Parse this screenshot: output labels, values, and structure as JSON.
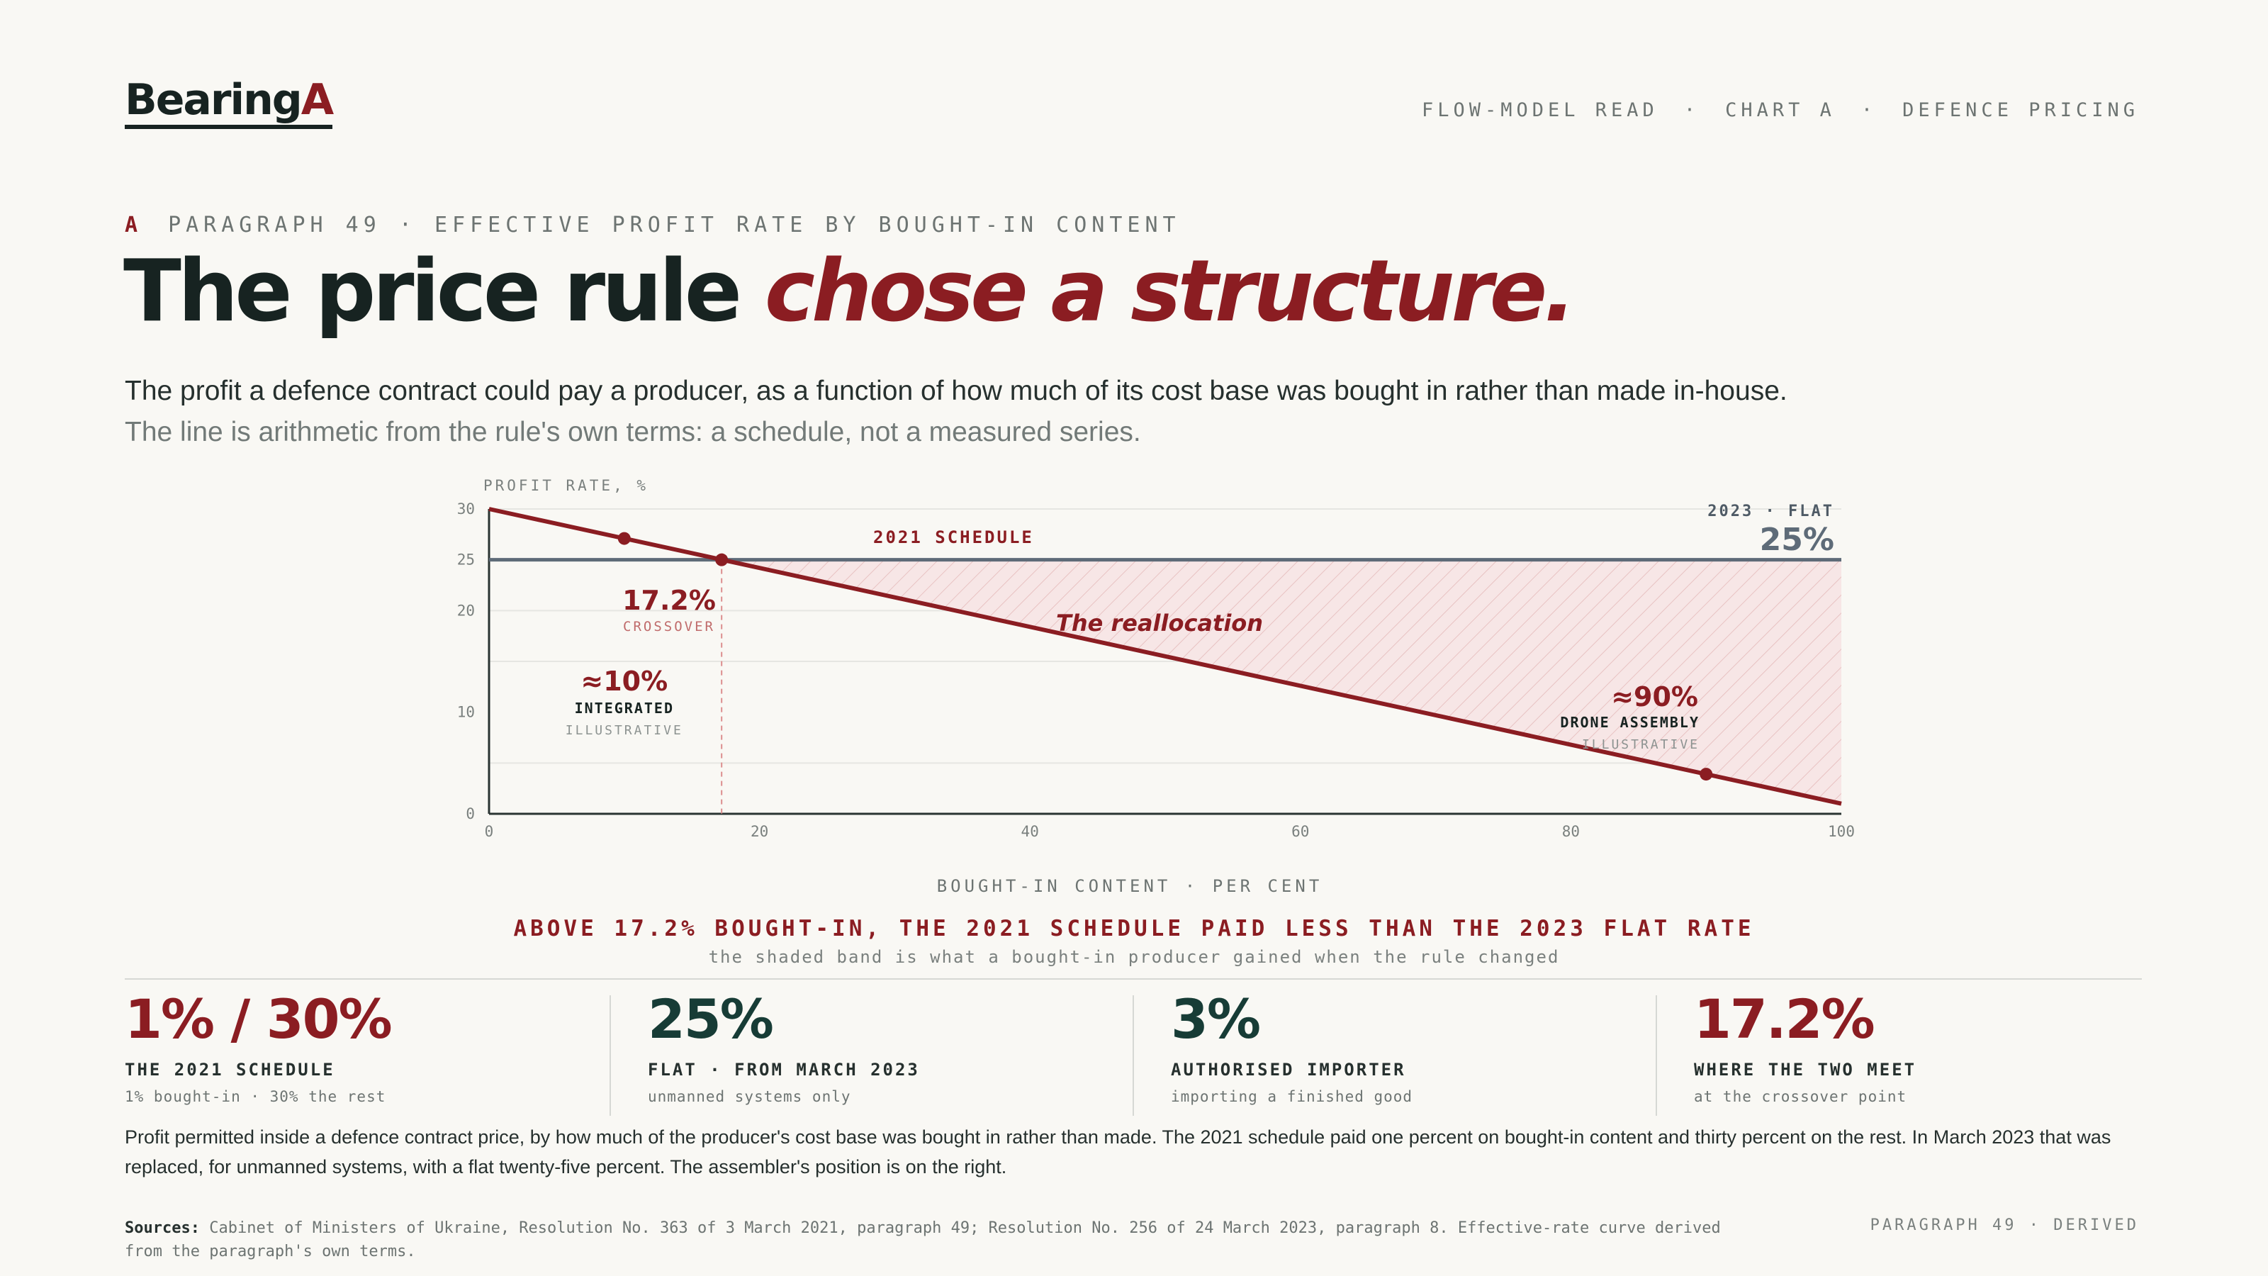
{
  "brand": {
    "logo_main": "Bearing",
    "logo_accent": "A"
  },
  "nav": {
    "item1": "FLOW-MODEL READ",
    "item2": "CHART A",
    "item3": "DEFENCE PRICING",
    "sep": "·"
  },
  "eyebrow": {
    "letter": "A",
    "text": "PARAGRAPH 49 · EFFECTIVE PROFIT RATE BY BOUGHT-IN CONTENT"
  },
  "headline": {
    "plain": "The price rule ",
    "emphasis": "chose a structure."
  },
  "lede": {
    "line1": "The profit a defence contract could pay a producer, as a function of how much of its cost base was bought in rather than made in-house.",
    "line2": "The line is arithmetic from the rule's own terms: a schedule, not a measured series."
  },
  "chart_data": {
    "type": "line",
    "ylabel": "PROFIT RATE, %",
    "xlabel": "BOUGHT-IN CONTENT · PER CENT",
    "xlim": [
      0,
      100
    ],
    "ylim": [
      0,
      30
    ],
    "x_ticks": [
      0,
      20,
      40,
      60,
      80,
      100
    ],
    "y_ticks": [
      0,
      10,
      20,
      25,
      30
    ],
    "grid": true,
    "series": [
      {
        "name": "2021 SCHEDULE",
        "x": [
          0,
          100
        ],
        "y": [
          30,
          1
        ],
        "color": "#8b1d22"
      },
      {
        "name": "2023 · FLAT",
        "x": [
          0,
          100
        ],
        "y": [
          25,
          25
        ],
        "color": "#5e6b78"
      }
    ],
    "points": [
      {
        "x": 10,
        "y": 27.1
      },
      {
        "x": 17.2,
        "y": 25
      },
      {
        "x": 90,
        "y": 3.9
      }
    ],
    "flat_rate_label": "25%",
    "band_label": "The reallocation",
    "annotations": {
      "crossover": {
        "value": "17.2%",
        "label": "CROSSOVER",
        "x": 17.2
      },
      "integrated": {
        "value": "≈10%",
        "label": "INTEGRATED",
        "note": "ILLUSTRATIVE",
        "x": 10
      },
      "drone": {
        "value": "≈90%",
        "label": "DRONE ASSEMBLY",
        "note": "ILLUSTRATIVE",
        "x": 90
      }
    }
  },
  "summary": {
    "headline": "ABOVE 17.2% BOUGHT-IN, THE 2021 SCHEDULE PAID LESS THAN THE 2023 FLAT RATE",
    "sub": "the shaded band is what a bought-in producer gained when the rule changed"
  },
  "stats": [
    {
      "value": "1% / 30%",
      "label": "THE 2021 SCHEDULE",
      "sub": "1% bought-in · 30% the rest",
      "color": "#8b1d22"
    },
    {
      "value": "25%",
      "label": "FLAT · FROM MARCH 2023",
      "sub": "unmanned systems only",
      "color": "#173c36"
    },
    {
      "value": "3%",
      "label": "AUTHORISED IMPORTER",
      "sub": "importing a finished good",
      "color": "#173c36"
    },
    {
      "value": "17.2%",
      "label": "WHERE THE TWO MEET",
      "sub": "at the crossover point",
      "color": "#8b1d22"
    }
  ],
  "body": "Profit permitted inside a defence contract price, by how much of the producer's cost base was bought in rather than made. The 2021 schedule paid one percent on bought-in content and thirty percent on the rest. In March 2023 that was replaced, for unmanned systems, with a flat twenty-five percent. The assembler's position is on the right.",
  "sources": {
    "label": "Sources:",
    "text": "Cabinet of Ministers of Ukraine, Resolution No. 363 of 3 March 2021, paragraph 49; Resolution No. 256 of 24 March 2023, paragraph 8. Effective-rate curve derived from the paragraph's own terms."
  },
  "footer_right": "PARAGRAPH 49 · DERIVED"
}
